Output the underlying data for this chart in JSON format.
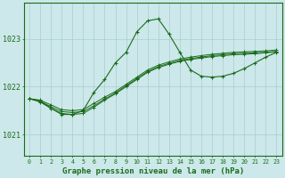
{
  "background_color": "#cce8ea",
  "grid_color": "#aacccc",
  "line_color": "#1a6b1a",
  "xlabel": "Graphe pression niveau de la mer (hPa)",
  "xlabel_fontsize": 6.5,
  "ylabel_ticks": [
    1021,
    1022,
    1023
  ],
  "xlim": [
    -0.5,
    23.5
  ],
  "ylim": [
    1020.55,
    1023.75
  ],
  "main_series": [
    1021.75,
    1021.7,
    1021.55,
    1021.42,
    1021.42,
    1021.5,
    1021.88,
    1022.15,
    1022.5,
    1022.72,
    1023.15,
    1023.38,
    1023.42,
    1023.1,
    1022.72,
    1022.35,
    1022.22,
    1022.2,
    1022.22,
    1022.28,
    1022.38,
    1022.5,
    1022.62,
    1022.72
  ],
  "trend_series": [
    [
      1021.75,
      1021.72,
      1021.62,
      1021.52,
      1021.5,
      1021.52,
      1021.65,
      1021.78,
      1021.9,
      1022.05,
      1022.2,
      1022.35,
      1022.45,
      1022.52,
      1022.58,
      1022.62,
      1022.65,
      1022.68,
      1022.7,
      1022.72,
      1022.73,
      1022.74,
      1022.75,
      1022.77
    ],
    [
      1021.75,
      1021.7,
      1021.58,
      1021.48,
      1021.46,
      1021.48,
      1021.6,
      1021.74,
      1021.87,
      1022.02,
      1022.17,
      1022.32,
      1022.42,
      1022.49,
      1022.55,
      1022.59,
      1022.62,
      1022.65,
      1022.67,
      1022.69,
      1022.7,
      1022.71,
      1022.72,
      1022.74
    ],
    [
      1021.75,
      1021.68,
      1021.55,
      1021.44,
      1021.42,
      1021.44,
      1021.57,
      1021.72,
      1021.85,
      1022.0,
      1022.15,
      1022.3,
      1022.4,
      1022.47,
      1022.53,
      1022.57,
      1022.6,
      1022.63,
      1022.65,
      1022.67,
      1022.68,
      1022.69,
      1022.71,
      1022.73
    ]
  ]
}
